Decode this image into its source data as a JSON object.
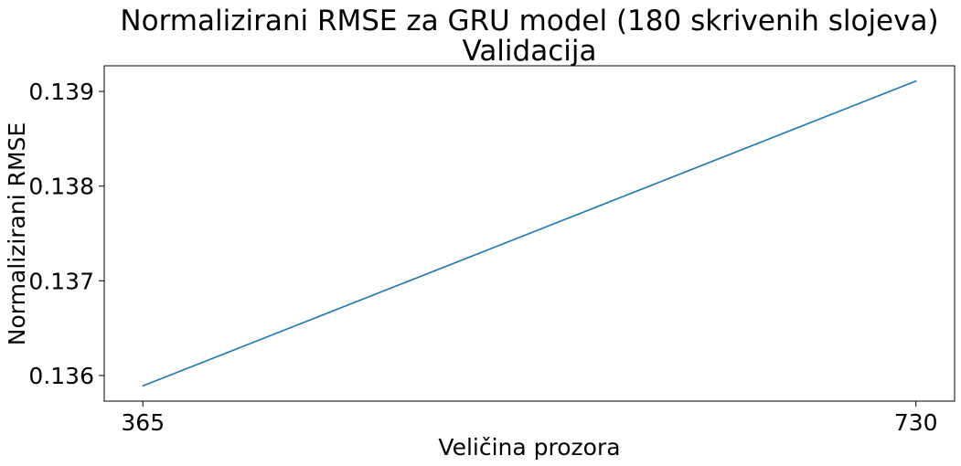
{
  "chart_data": {
    "type": "line",
    "title": "Normalizirani RMSE za GRU model (180 skrivenih slojeva)",
    "subtitle": "Validacija",
    "xlabel": "Veličina prozora",
    "ylabel": "Normalizirani RMSE",
    "x": [
      365,
      730
    ],
    "series": [
      {
        "values": [
          0.13589,
          0.13911
        ],
        "color": "#1f77b4"
      }
    ],
    "xlim": [
      346.75,
      748.25
    ],
    "ylim": [
      0.135729,
      0.139271
    ],
    "xticks": [
      365,
      730
    ],
    "xtick_labels": [
      "365",
      "730"
    ],
    "yticks": [
      0.136,
      0.137,
      0.138,
      0.139
    ],
    "ytick_labels": [
      "0.136",
      "0.137",
      "0.138",
      "0.139"
    ],
    "grid": false
  }
}
